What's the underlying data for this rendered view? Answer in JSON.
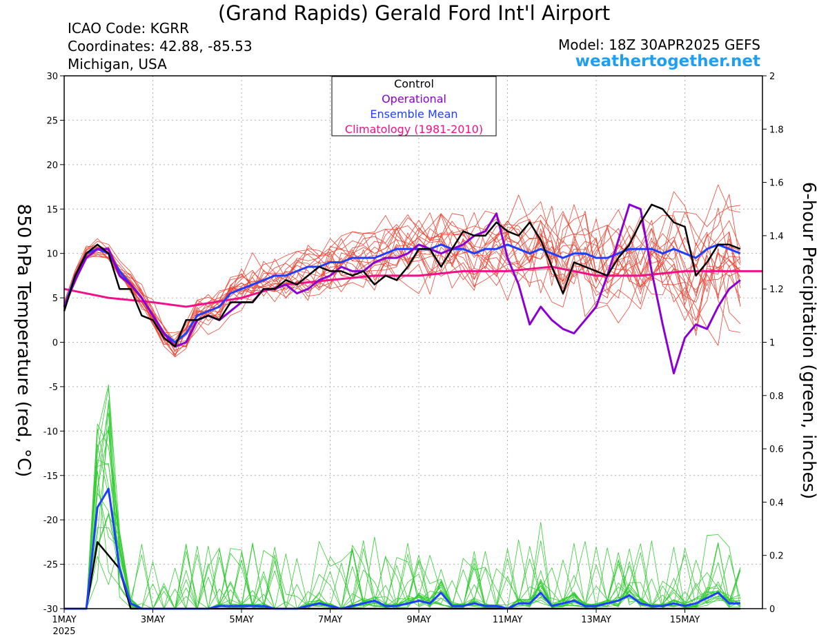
{
  "header": {
    "title": "(Grand Rapids) Gerald Ford Int'l Airport",
    "icao": "ICAO Code: KGRR",
    "coords": "Coordinates: 42.88, -85.53",
    "region": "Michigan, USA",
    "model": "Model: 18Z 30APR2025 GEFS",
    "brand": "weathertogether.net"
  },
  "chart_data": {
    "type": "line",
    "ylabel_left": "850 hPa Temperature (red, °C)",
    "ylabel_right": "6-hour Precipitation (green, inches)",
    "ylim_left": [
      -30,
      30
    ],
    "yticks_left": [
      "30",
      "25",
      "20",
      "15",
      "10",
      "5",
      "0",
      "-5",
      "-10",
      "-15",
      "-20",
      "-25",
      "-30"
    ],
    "ylim_right": [
      0,
      2
    ],
    "yticks_right": [
      "2",
      "1.8",
      "1.6",
      "1.4",
      "1.2",
      "1",
      "0.8",
      "0.6",
      "0.4",
      "0.2",
      "0"
    ],
    "x_start_day": 1,
    "x_end_day": 16.75,
    "xticks": [
      {
        "day": 1,
        "label": "1MAY",
        "sub": "2025"
      },
      {
        "day": 3,
        "label": "3MAY"
      },
      {
        "day": 5,
        "label": "5MAY"
      },
      {
        "day": 7,
        "label": "7MAY"
      },
      {
        "day": 9,
        "label": "9MAY"
      },
      {
        "day": 11,
        "label": "11MAY"
      },
      {
        "day": 13,
        "label": "13MAY"
      },
      {
        "day": 15,
        "label": "15MAY"
      }
    ],
    "legend": [
      "Control",
      "Operational",
      "Ensemble Mean",
      "Climatology (1981-2010)"
    ],
    "legend_colors": [
      "#000000",
      "#8a00d4",
      "#1f3fff",
      "#ee1188"
    ],
    "temperature": {
      "control": [
        3.5,
        7.5,
        10.0,
        11.0,
        10.0,
        6.0,
        6.0,
        3.0,
        2.5,
        0.5,
        -0.5,
        2.5,
        2.5,
        3.0,
        2.5,
        4.5,
        4.5,
        4.5,
        6.0,
        6.0,
        7.0,
        6.5,
        7.5,
        8.5,
        8.0,
        8.0,
        7.5,
        8.0,
        6.5,
        7.5,
        7.0,
        8.5,
        10.5,
        10.5,
        8.5,
        10.5,
        12.5,
        12.0,
        12.0,
        13.5,
        12.5,
        12.0,
        13.5,
        11.5,
        8.5,
        5.5,
        9.0,
        8.5,
        8.0,
        7.5,
        9.5,
        11.0,
        13.5,
        15.5,
        15.0,
        13.5,
        13.0,
        7.5,
        9.0,
        11.0,
        11.0,
        10.5
      ],
      "operational": [
        4.0,
        7.0,
        9.5,
        10.5,
        10.5,
        7.5,
        6.5,
        5.0,
        3.0,
        1.0,
        -0.5,
        0.0,
        2.5,
        3.0,
        2.5,
        3.5,
        4.5,
        4.5,
        6.0,
        6.0,
        6.5,
        5.5,
        6.0,
        7.0,
        7.5,
        8.5,
        8.0,
        8.0,
        9.0,
        9.5,
        9.5,
        10.0,
        11.0,
        10.5,
        10.0,
        10.5,
        11.0,
        12.0,
        12.5,
        14.5,
        9.5,
        6.5,
        2.0,
        4.0,
        2.5,
        1.5,
        1.0,
        2.5,
        4.0,
        7.5,
        11.5,
        15.5,
        15.0,
        8.0,
        2.0,
        -3.5,
        0.5,
        2.0,
        1.5,
        4.0,
        6.0,
        7.0
      ],
      "ensemble_mean": [
        4.0,
        7.5,
        10.0,
        10.5,
        10.0,
        8.0,
        6.5,
        5.0,
        3.0,
        1.0,
        0.0,
        1.0,
        3.0,
        3.5,
        4.0,
        5.5,
        6.0,
        6.5,
        7.0,
        7.5,
        7.5,
        8.0,
        8.5,
        8.5,
        9.0,
        9.0,
        9.5,
        9.5,
        9.5,
        10.0,
        10.5,
        10.5,
        10.5,
        10.5,
        11.0,
        10.5,
        10.5,
        10.0,
        10.5,
        10.5,
        11.0,
        10.5,
        10.0,
        10.5,
        10.0,
        9.5,
        10.0,
        10.0,
        9.5,
        9.5,
        10.0,
        10.5,
        10.5,
        10.5,
        10.0,
        10.5,
        10.0,
        9.5,
        10.5,
        11.0,
        10.5,
        10.0
      ],
      "climatology": [
        [
          1,
          6.0
        ],
        [
          2,
          5.0
        ],
        [
          3,
          4.5
        ],
        [
          3.75,
          4.0
        ],
        [
          5,
          5.0
        ],
        [
          6,
          6.5
        ],
        [
          7,
          7.0
        ],
        [
          8,
          7.5
        ],
        [
          9,
          7.5
        ],
        [
          10,
          8.0
        ],
        [
          11,
          8.0
        ],
        [
          12,
          8.5
        ],
        [
          12.5,
          8.0
        ],
        [
          13,
          7.5
        ],
        [
          14,
          7.5
        ],
        [
          15,
          8.0
        ],
        [
          16,
          8.0
        ],
        [
          16.75,
          8.0
        ]
      ]
    },
    "precipitation": {
      "control": [
        0,
        0,
        0,
        0.25,
        0.2,
        0.15,
        0,
        0,
        0,
        0,
        0,
        0,
        0,
        0,
        0,
        0,
        0,
        0,
        0,
        0,
        0,
        0,
        0,
        0,
        0,
        0,
        0,
        0,
        0,
        0,
        0,
        0,
        0,
        0,
        0,
        0,
        0,
        0,
        0,
        0,
        0,
        0,
        0,
        0,
        0,
        0,
        0,
        0,
        0,
        0,
        0,
        0,
        0,
        0,
        0,
        0,
        0,
        0,
        0,
        0,
        0,
        0
      ],
      "ensemble_mean": [
        0,
        0,
        0,
        0.38,
        0.45,
        0.15,
        0.02,
        0,
        0,
        0,
        0,
        0,
        0,
        0,
        0.01,
        0.01,
        0.01,
        0.01,
        0.01,
        0,
        0,
        0,
        0.01,
        0.02,
        0.01,
        0,
        0.01,
        0.02,
        0.03,
        0.01,
        0.01,
        0.02,
        0.03,
        0.02,
        0.06,
        0.01,
        0.01,
        0.02,
        0.01,
        0.01,
        0,
        0.02,
        0.02,
        0.06,
        0.01,
        0.02,
        0.03,
        0.01,
        0.01,
        0.02,
        0.03,
        0.05,
        0.02,
        0.01,
        0.01,
        0.02,
        0.01,
        0.02,
        0.04,
        0.06,
        0.02,
        0.02
      ]
    }
  }
}
